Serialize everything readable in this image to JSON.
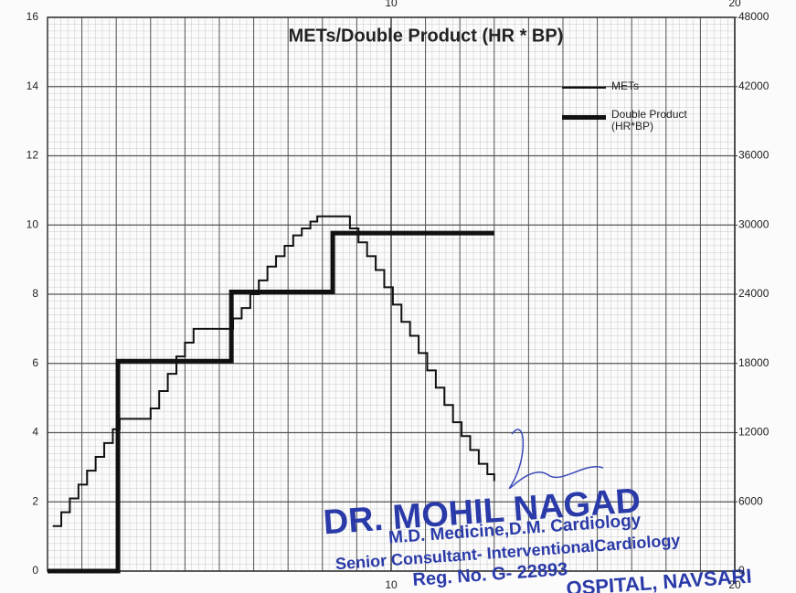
{
  "chart_data": {
    "type": "step-line",
    "title": "METs/Double Product (HR * BP)",
    "xlim": [
      0,
      20
    ],
    "xticks": [
      10,
      20
    ],
    "ylim": [
      0,
      16
    ],
    "yticks": [
      0,
      2,
      4,
      6,
      8,
      10,
      12,
      14,
      16
    ],
    "y2lim": [
      0,
      48000
    ],
    "y2ticks": [
      0,
      6000,
      12000,
      18000,
      24000,
      30000,
      36000,
      42000,
      48000
    ],
    "grid": true,
    "series": [
      {
        "name": "METs",
        "color": "#111111",
        "x": [
          0.15,
          0.4,
          0.65,
          0.9,
          1.15,
          1.4,
          1.65,
          1.9,
          2.1,
          3.0,
          3.25,
          3.5,
          3.75,
          4.0,
          4.25,
          5.4,
          5.65,
          5.9,
          6.15,
          6.4,
          6.65,
          6.9,
          7.15,
          7.4,
          7.65,
          7.85,
          8.8,
          9.05,
          9.3,
          9.55,
          9.8,
          10.05,
          10.3,
          10.55,
          10.8,
          11.05,
          11.3,
          11.55,
          11.8,
          12.05,
          12.3,
          12.55,
          12.8,
          13.0
        ],
        "values": [
          1.3,
          1.7,
          2.1,
          2.5,
          2.9,
          3.3,
          3.7,
          4.1,
          4.4,
          4.7,
          5.2,
          5.7,
          6.2,
          6.6,
          7.0,
          7.3,
          7.6,
          8.0,
          8.4,
          8.8,
          9.1,
          9.4,
          9.7,
          9.9,
          10.1,
          10.25,
          9.9,
          9.5,
          9.1,
          8.7,
          8.2,
          7.7,
          7.2,
          6.8,
          6.3,
          5.8,
          5.3,
          4.8,
          4.3,
          3.9,
          3.5,
          3.1,
          2.8,
          2.6
        ]
      },
      {
        "name": "Double Product (HR*BP)",
        "color": "#111111",
        "axis": "y2",
        "x": [
          0,
          2.05,
          5.35,
          8.3,
          13.0
        ],
        "values": [
          0,
          18200,
          24200,
          29300,
          29300
        ]
      }
    ],
    "annotations": [
      "DR. MOHIL NAGAD",
      "M.D. Medicine,D.M. Cardiology",
      "Senior Consultant- InterventionalCardiology",
      "Reg. No. G- 22893",
      "OSPITAL, NAVSARI"
    ]
  }
}
